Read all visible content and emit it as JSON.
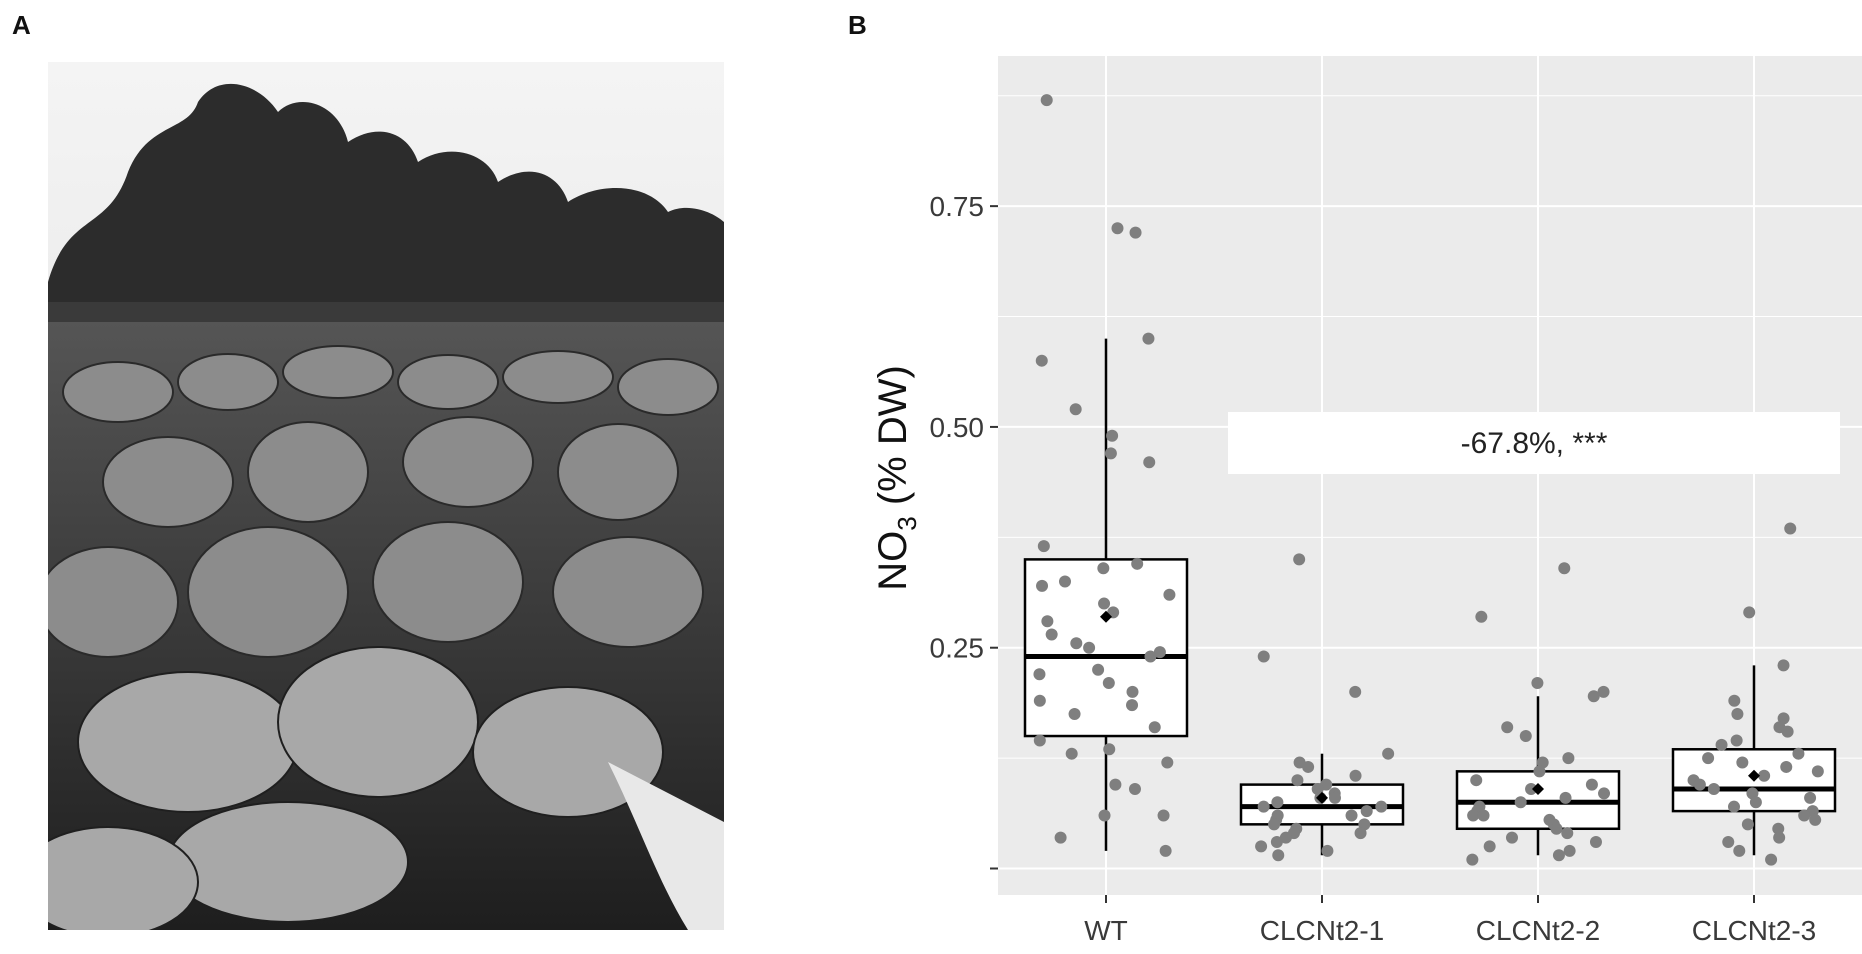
{
  "panels": {
    "a_label": "A",
    "b_label": "B"
  },
  "photo": {
    "subject": "tobacco field photograph, grayscale"
  },
  "chart_data": {
    "type": "box",
    "categories": [
      "WT",
      "CLCNt2-1",
      "CLCNt2-2",
      "CLCNt2-3"
    ],
    "ylabel_main": "NO",
    "ylabel_sub": "3",
    "ylabel_rest": " (% DW)",
    "yticks": [
      0.25,
      0.5,
      0.75
    ],
    "ytick_labels": [
      "0.25",
      "0.50",
      "0.75"
    ],
    "ylim": [
      -0.03,
      0.92
    ],
    "grid": true,
    "annotation": "-67.8%, ***",
    "colors": {
      "panel_bg": "#ebebeb",
      "grid": "#ffffff",
      "point": "#7f7f7f",
      "box": "#000000"
    },
    "boxes": [
      {
        "q1": 0.15,
        "median": 0.24,
        "q3": 0.35,
        "whisker_low": 0.02,
        "whisker_high": 0.6,
        "mean": 0.285
      },
      {
        "q1": 0.05,
        "median": 0.07,
        "q3": 0.095,
        "whisker_low": 0.015,
        "whisker_high": 0.13,
        "mean": 0.08
      },
      {
        "q1": 0.045,
        "median": 0.075,
        "q3": 0.11,
        "whisker_low": 0.015,
        "whisker_high": 0.195,
        "mean": 0.09
      },
      {
        "q1": 0.065,
        "median": 0.09,
        "q3": 0.135,
        "whisker_low": 0.015,
        "whisker_high": 0.23,
        "mean": 0.105
      }
    ],
    "points": [
      [
        0.87,
        0.72,
        0.725,
        0.6,
        0.575,
        0.52,
        0.49,
        0.47,
        0.46,
        0.365,
        0.345,
        0.34,
        0.325,
        0.32,
        0.31,
        0.3,
        0.29,
        0.28,
        0.265,
        0.255,
        0.25,
        0.245,
        0.24,
        0.225,
        0.22,
        0.21,
        0.2,
        0.19,
        0.185,
        0.175,
        0.16,
        0.145,
        0.135,
        0.13,
        0.12,
        0.095,
        0.09,
        0.06,
        0.06,
        0.035,
        0.02
      ],
      [
        0.35,
        0.24,
        0.2,
        0.13,
        0.12,
        0.115,
        0.105,
        0.1,
        0.095,
        0.09,
        0.085,
        0.08,
        0.08,
        0.075,
        0.07,
        0.07,
        0.065,
        0.06,
        0.06,
        0.055,
        0.05,
        0.05,
        0.045,
        0.04,
        0.04,
        0.035,
        0.03,
        0.025,
        0.02,
        0.015
      ],
      [
        0.34,
        0.285,
        0.21,
        0.2,
        0.195,
        0.16,
        0.15,
        0.125,
        0.12,
        0.11,
        0.1,
        0.095,
        0.09,
        0.085,
        0.08,
        0.075,
        0.07,
        0.065,
        0.06,
        0.06,
        0.055,
        0.05,
        0.045,
        0.04,
        0.035,
        0.03,
        0.025,
        0.02,
        0.015,
        0.01
      ],
      [
        0.385,
        0.29,
        0.23,
        0.19,
        0.175,
        0.17,
        0.16,
        0.155,
        0.145,
        0.14,
        0.13,
        0.125,
        0.12,
        0.115,
        0.11,
        0.105,
        0.1,
        0.095,
        0.09,
        0.085,
        0.08,
        0.075,
        0.07,
        0.065,
        0.06,
        0.055,
        0.05,
        0.045,
        0.035,
        0.03,
        0.02,
        0.01
      ]
    ]
  }
}
